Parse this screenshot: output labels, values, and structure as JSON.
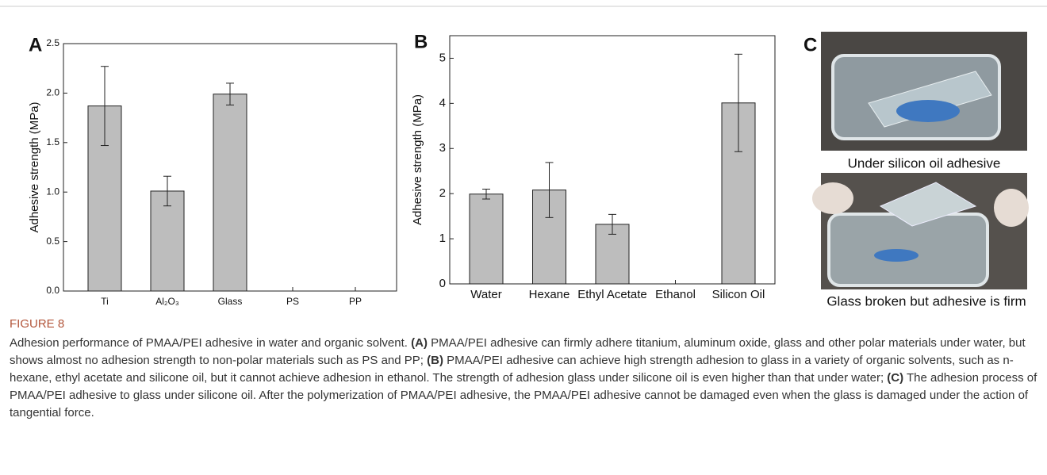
{
  "chart_data": [
    {
      "type": "bar",
      "panel": "A",
      "y_label": "Adhesive strength (MPa)",
      "categories": [
        "Ti",
        "Al₂O₃",
        "Glass",
        "PS",
        "PP"
      ],
      "values": [
        1.87,
        1.01,
        1.99,
        0,
        0
      ],
      "errors": [
        0.4,
        0.15,
        0.11,
        null,
        null
      ],
      "color": "#bdbdbd",
      "ylim": [
        0,
        2.5
      ],
      "yticks": [
        {
          "value": 0,
          "label": "0.0"
        },
        0.5,
        {
          "value": 1,
          "label": "1.0"
        },
        1.5,
        {
          "value": 2,
          "label": "2.0"
        },
        2.5
      ]
    },
    {
      "type": "bar",
      "panel": "B",
      "y_label": "Adhesive strength (MPa)",
      "categories": [
        "Water",
        "Hexane",
        "Ethyl Acetate",
        "Ethanol",
        "Silicon Oil"
      ],
      "values": [
        1.99,
        2.08,
        1.32,
        0,
        4.01
      ],
      "errors": [
        0.11,
        0.61,
        0.22,
        null,
        1.08
      ],
      "color": "#bdbdbd",
      "ylim": [
        0,
        5.5
      ],
      "yticks": [
        0,
        1,
        2,
        3,
        4,
        5
      ]
    }
  ],
  "panel_c": {
    "panel": "C",
    "photo_captions": [
      "Under silicon oil adhesive",
      "Glass broken but adhesive is firm"
    ]
  },
  "caption": {
    "label": "FIGURE 8",
    "parts": [
      {
        "text": "Adhesion performance of PMAA/PEI adhesive in water and organic solvent. "
      },
      {
        "text": "(A)",
        "bold": true
      },
      {
        "text": " PMAA/PEI adhesive can firmly adhere titanium, aluminum oxide, glass and other polar materials under water, but shows almost no adhesion strength to non-polar materials such as PS and PP; "
      },
      {
        "text": "(B)",
        "bold": true
      },
      {
        "text": " PMAA/PEI adhesive can achieve high strength adhesion to glass in a variety of organic solvents, such as n-hexane, ethyl acetate and silicone oil, but it cannot achieve adhesion in ethanol. The strength of adhesion glass under silicone oil is even higher than that under water; "
      },
      {
        "text": "(C)",
        "bold": true
      },
      {
        "text": " The adhesion process of PMAA/PEI adhesive to glass under silicone oil. After the polymerization of PMAA/PEI adhesive, the PMAA/PEI adhesive cannot be damaged even when the glass is damaged under the action of tangential force."
      }
    ]
  }
}
